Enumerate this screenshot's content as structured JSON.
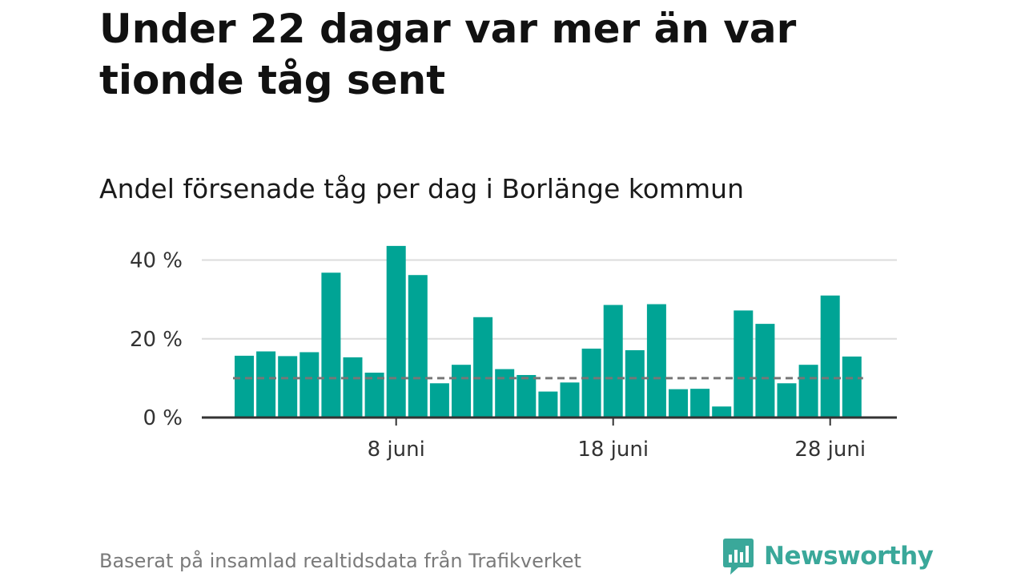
{
  "title": "Under 22 dagar var mer än var tionde tåg sent",
  "subtitle": "Andel försenade tåg per dag i Borlänge kommun",
  "source": "Baserat på insamlad realtidsdata från Trafikverket",
  "brand": {
    "name": "Newsworthy",
    "color": "#3aa89a",
    "icon": "bar-chart-speech-bubble-icon"
  },
  "colors": {
    "bar": "#00a495",
    "reference_line": "#777777",
    "grid": "#dcdcdc",
    "axis": "#333333"
  },
  "chart_data": {
    "type": "bar",
    "x": [
      "1 juni",
      "2 juni",
      "3 juni",
      "4 juni",
      "5 juni",
      "6 juni",
      "7 juni",
      "8 juni",
      "9 juni",
      "10 juni",
      "11 juni",
      "12 juni",
      "13 juni",
      "14 juni",
      "15 juni",
      "16 juni",
      "17 juni",
      "18 juni",
      "19 juni",
      "20 juni",
      "21 juni",
      "22 juni",
      "23 juni",
      "24 juni",
      "25 juni",
      "26 juni",
      "27 juni",
      "28 juni",
      "29 juni"
    ],
    "values": [
      15.7,
      16.8,
      15.6,
      16.6,
      36.8,
      15.3,
      11.4,
      43.6,
      36.2,
      8.7,
      13.4,
      25.5,
      12.3,
      10.8,
      6.6,
      8.9,
      17.5,
      28.6,
      17.1,
      28.8,
      7.2,
      7.3,
      2.8,
      27.2,
      23.8,
      8.7,
      13.4,
      31.0,
      15.5
    ],
    "reference_line": {
      "value": 10,
      "style": "dashed"
    },
    "y_ticks": [
      {
        "value": 0,
        "label": "0 %"
      },
      {
        "value": 20,
        "label": "20 %"
      },
      {
        "value": 40,
        "label": "40 %"
      }
    ],
    "x_ticks": [
      {
        "index": 7,
        "label": "8 juni"
      },
      {
        "index": 17,
        "label": "18 juni"
      },
      {
        "index": 27,
        "label": "28 juni"
      }
    ],
    "ylim": [
      0,
      45
    ],
    "grid": true,
    "legend": "none"
  }
}
